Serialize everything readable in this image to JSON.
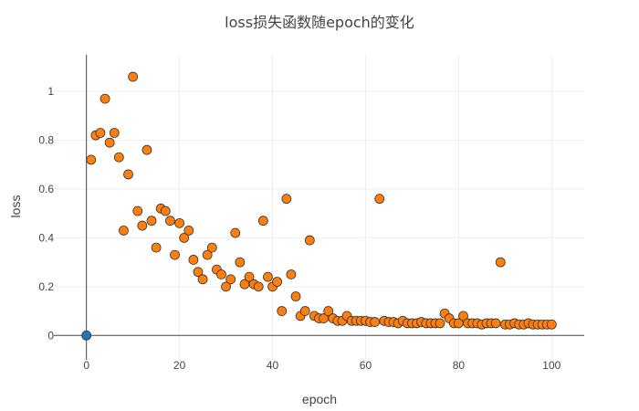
{
  "chart_data": {
    "type": "scatter",
    "title": "loss损失函数随epoch的变化",
    "xlabel": "epoch",
    "ylabel": "loss",
    "xlim": [
      -7,
      107
    ],
    "ylim": [
      -0.1,
      1.15
    ],
    "xticks": [
      0,
      20,
      40,
      60,
      80,
      100
    ],
    "yticks": [
      0,
      0.2,
      0.4,
      0.6,
      0.8,
      1
    ],
    "grid": true,
    "legend": "none",
    "colors": {
      "series_0": "#1f77b4",
      "series_1": "#ff7f0e",
      "outline": "#333333",
      "grid": "#eeeeee",
      "axis": "#444444"
    },
    "series": [
      {
        "x": [
          0
        ],
        "y": [
          0
        ]
      },
      {
        "x": [
          1,
          2,
          3,
          4,
          5,
          6,
          7,
          8,
          9,
          10,
          11,
          12,
          13,
          14,
          15,
          16,
          17,
          18,
          19,
          20,
          21,
          22,
          23,
          24,
          25,
          26,
          27,
          28,
          29,
          30,
          31,
          32,
          33,
          34,
          35,
          36,
          37,
          38,
          39,
          40,
          41,
          42,
          43,
          44,
          45,
          46,
          47,
          48,
          49,
          50,
          51,
          52,
          53,
          54,
          55,
          56,
          57,
          58,
          59,
          60,
          61,
          62,
          63,
          64,
          65,
          66,
          67,
          68,
          69,
          70,
          71,
          72,
          73,
          74,
          75,
          76,
          77,
          78,
          79,
          80,
          81,
          82,
          83,
          84,
          85,
          86,
          87,
          88,
          89,
          90,
          91,
          92,
          93,
          94,
          95,
          96,
          97,
          98,
          99,
          100
        ],
        "y": [
          0.72,
          0.82,
          0.83,
          0.97,
          0.79,
          0.83,
          0.73,
          0.43,
          0.66,
          1.06,
          0.51,
          0.45,
          0.76,
          0.47,
          0.36,
          0.52,
          0.51,
          0.47,
          0.33,
          0.46,
          0.4,
          0.43,
          0.31,
          0.26,
          0.23,
          0.33,
          0.36,
          0.27,
          0.25,
          0.2,
          0.23,
          0.42,
          0.3,
          0.21,
          0.24,
          0.21,
          0.2,
          0.47,
          0.24,
          0.2,
          0.22,
          0.1,
          0.56,
          0.25,
          0.16,
          0.08,
          0.1,
          0.39,
          0.08,
          0.07,
          0.07,
          0.1,
          0.07,
          0.06,
          0.06,
          0.08,
          0.06,
          0.06,
          0.06,
          0.06,
          0.055,
          0.055,
          0.56,
          0.06,
          0.055,
          0.055,
          0.05,
          0.06,
          0.05,
          0.05,
          0.05,
          0.055,
          0.05,
          0.05,
          0.05,
          0.05,
          0.09,
          0.07,
          0.05,
          0.05,
          0.08,
          0.05,
          0.05,
          0.05,
          0.045,
          0.05,
          0.05,
          0.05,
          0.3,
          0.045,
          0.045,
          0.05,
          0.045,
          0.045,
          0.05,
          0.045,
          0.045,
          0.045,
          0.045,
          0.045
        ]
      }
    ]
  }
}
